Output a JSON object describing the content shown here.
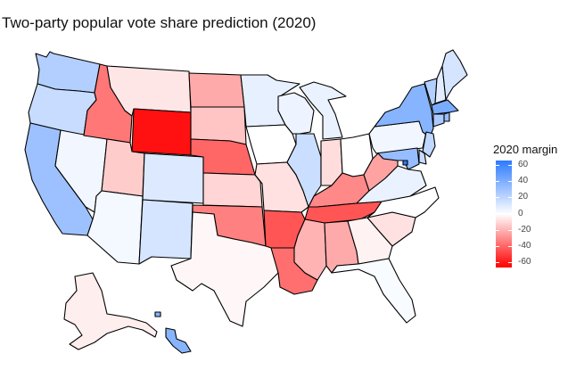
{
  "title": "Two-party popular vote share prediction (2020)",
  "legend": {
    "title": "2020 margin",
    "ticks": [
      "60",
      "40",
      "20",
      "0",
      "-20",
      "-40",
      "-60"
    ],
    "scale": {
      "low_color": "#ff0000",
      "mid_color": "#ffffff",
      "high_color": "#0000ff",
      "min": -60,
      "max": 60
    }
  },
  "states": [
    {
      "id": "WA",
      "margin": 22
    },
    {
      "id": "OR",
      "margin": 16
    },
    {
      "id": "CA",
      "margin": 28
    },
    {
      "id": "NV",
      "margin": 4
    },
    {
      "id": "ID",
      "margin": -32
    },
    {
      "id": "MT",
      "margin": -6
    },
    {
      "id": "WY",
      "margin": -56
    },
    {
      "id": "UT",
      "margin": -12
    },
    {
      "id": "AZ",
      "margin": 3
    },
    {
      "id": "CO",
      "margin": 10
    },
    {
      "id": "NM",
      "margin": 12
    },
    {
      "id": "ND",
      "margin": -20
    },
    {
      "id": "SD",
      "margin": -14
    },
    {
      "id": "NE",
      "margin": -36
    },
    {
      "id": "KS",
      "margin": -10
    },
    {
      "id": "OK",
      "margin": -30
    },
    {
      "id": "TX",
      "margin": -2
    },
    {
      "id": "MN",
      "margin": 7
    },
    {
      "id": "IA",
      "margin": 0
    },
    {
      "id": "MO",
      "margin": -7
    },
    {
      "id": "AR",
      "margin": -40
    },
    {
      "id": "LA",
      "margin": -34
    },
    {
      "id": "WI",
      "margin": 5
    },
    {
      "id": "IL",
      "margin": 15
    },
    {
      "id": "MI",
      "margin": 6
    },
    {
      "id": "IN",
      "margin": -8
    },
    {
      "id": "OH",
      "margin": 0
    },
    {
      "id": "KY",
      "margin": -28
    },
    {
      "id": "TN",
      "margin": -40
    },
    {
      "id": "MS",
      "margin": -18
    },
    {
      "id": "AL",
      "margin": -20
    },
    {
      "id": "GA",
      "margin": -3
    },
    {
      "id": "FL",
      "margin": 2
    },
    {
      "id": "SC",
      "margin": -7
    },
    {
      "id": "NC",
      "margin": 0
    },
    {
      "id": "VA",
      "margin": 6
    },
    {
      "id": "WV",
      "margin": -22
    },
    {
      "id": "PA",
      "margin": 4
    },
    {
      "id": "NY",
      "margin": 34
    },
    {
      "id": "VT",
      "margin": 22
    },
    {
      "id": "NH",
      "margin": 8
    },
    {
      "id": "ME",
      "margin": 12
    },
    {
      "id": "MA",
      "margin": 38
    },
    {
      "id": "RI",
      "margin": 30
    },
    {
      "id": "CT",
      "margin": 24
    },
    {
      "id": "NJ",
      "margin": 18
    },
    {
      "id": "DE",
      "margin": 16
    },
    {
      "id": "MD",
      "margin": 30
    },
    {
      "id": "DC",
      "margin": 60
    },
    {
      "id": "AK",
      "margin": -4
    },
    {
      "id": "HI",
      "margin": 34
    }
  ]
}
